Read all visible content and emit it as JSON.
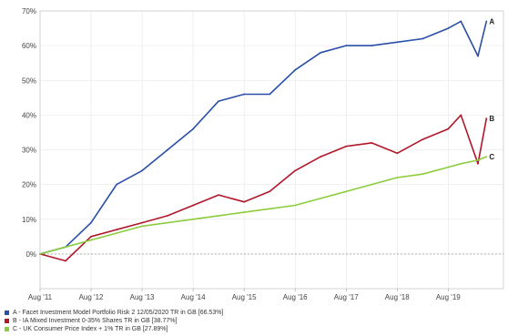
{
  "chart_data": {
    "type": "line",
    "x_ticks": [
      "Aug '11",
      "Aug '12",
      "Aug '13",
      "Aug '14",
      "Aug '15",
      "Aug '16",
      "Aug '17",
      "Aug '18",
      "Aug '19"
    ],
    "y_ticks": [
      "0%",
      "10%",
      "20%",
      "30%",
      "40%",
      "50%",
      "60%",
      "70%"
    ],
    "ylim": [
      -10,
      70
    ],
    "y_unit": "%",
    "grid": true,
    "legend_position": "bottom",
    "x": [
      "2011-08",
      "2012-02",
      "2012-08",
      "2013-02",
      "2013-08",
      "2014-02",
      "2014-08",
      "2015-02",
      "2015-08",
      "2016-02",
      "2016-08",
      "2017-02",
      "2017-08",
      "2018-02",
      "2018-08",
      "2019-02",
      "2019-08",
      "2019-11",
      "2020-03",
      "2020-05"
    ],
    "series": [
      {
        "id": "A",
        "name": "A - Facet Investment Model Portfolio Risk 2 12/05/2020 TR in GB [66.53%]",
        "end_label": "A",
        "color": "#2a4fa8",
        "values": [
          0,
          2,
          9,
          20,
          24,
          30,
          36,
          44,
          46,
          46,
          53,
          58,
          60,
          60,
          61,
          62,
          65,
          67,
          57,
          67
        ]
      },
      {
        "id": "B",
        "name": "B - IA Mixed Investment 0-35% Shares TR in GB [38.77%]",
        "end_label": "B",
        "color": "#b0182a",
        "values": [
          0,
          -2,
          5,
          7,
          9,
          11,
          14,
          17,
          15,
          18,
          24,
          28,
          31,
          32,
          29,
          33,
          36,
          40,
          26,
          39
        ]
      },
      {
        "id": "C",
        "name": "C - UK Consumer Price Index + 1% TR in GB [27.89%]",
        "end_label": "C",
        "color": "#8ccc3e",
        "values": [
          0,
          2,
          4,
          6,
          8,
          9,
          10,
          11,
          12,
          13,
          14,
          16,
          18,
          20,
          22,
          23,
          25,
          26,
          27,
          28
        ]
      }
    ]
  }
}
